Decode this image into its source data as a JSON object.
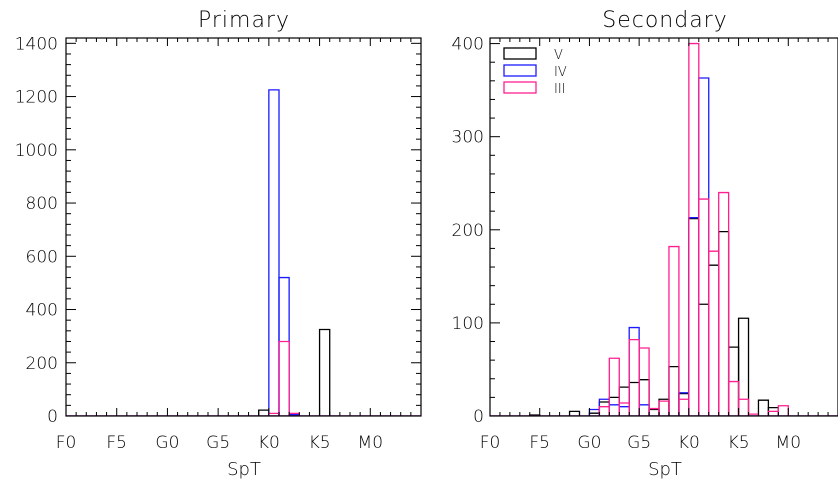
{
  "chart_data": [
    {
      "type": "histogram",
      "title": "Primary",
      "xlabel": "SpT",
      "ylabel": "",
      "xlim": [
        0,
        70
      ],
      "ylim": [
        0,
        1420
      ],
      "x_ticks": [
        {
          "value": 0,
          "label": "F0"
        },
        {
          "value": 10,
          "label": "F5"
        },
        {
          "value": 20,
          "label": "G0"
        },
        {
          "value": 30,
          "label": "G5"
        },
        {
          "value": 40,
          "label": "K0"
        },
        {
          "value": 50,
          "label": "K5"
        },
        {
          "value": 60,
          "label": "M0"
        }
      ],
      "y_ticks": [
        0,
        200,
        400,
        600,
        800,
        1000,
        1200,
        1400
      ],
      "bin_width": 2,
      "series": [
        {
          "key": "V",
          "color": "#000000",
          "bins": [
            {
              "x": 38,
              "value": 22
            },
            {
              "x": 44,
              "value": 4
            },
            {
              "x": 50,
              "value": 325
            }
          ]
        },
        {
          "key": "IV",
          "color": "#1a1aff",
          "bins": [
            {
              "x": 40,
              "value": 1225
            },
            {
              "x": 42,
              "value": 520
            },
            {
              "x": 44,
              "value": 5
            }
          ]
        },
        {
          "key": "III",
          "color": "#ff1f8f",
          "bins": [
            {
              "x": 40,
              "value": 10
            },
            {
              "x": 42,
              "value": 280
            },
            {
              "x": 44,
              "value": 10
            }
          ]
        }
      ]
    },
    {
      "type": "histogram",
      "title": "Secondary",
      "xlabel": "SpT",
      "ylabel": "",
      "xlim": [
        0,
        70
      ],
      "ylim": [
        0,
        406
      ],
      "x_ticks": [
        {
          "value": 0,
          "label": "F0"
        },
        {
          "value": 10,
          "label": "F5"
        },
        {
          "value": 20,
          "label": "G0"
        },
        {
          "value": 30,
          "label": "G5"
        },
        {
          "value": 40,
          "label": "K0"
        },
        {
          "value": 50,
          "label": "K5"
        },
        {
          "value": 60,
          "label": "M0"
        }
      ],
      "y_ticks": [
        0,
        100,
        200,
        300,
        400
      ],
      "bin_width": 2,
      "legend": {
        "placement": "top-left",
        "entries": [
          {
            "label": "V",
            "color": "#000000"
          },
          {
            "label": "IV",
            "color": "#1a1aff"
          },
          {
            "label": "III",
            "color": "#ff1f8f"
          }
        ]
      },
      "series": [
        {
          "key": "V",
          "color": "#000000",
          "bins": [
            {
              "x": 8,
              "value": 1
            },
            {
              "x": 16,
              "value": 5
            },
            {
              "x": 20,
              "value": 3
            },
            {
              "x": 22,
              "value": 15
            },
            {
              "x": 24,
              "value": 20
            },
            {
              "x": 26,
              "value": 31
            },
            {
              "x": 28,
              "value": 36
            },
            {
              "x": 30,
              "value": 39
            },
            {
              "x": 32,
              "value": 7
            },
            {
              "x": 34,
              "value": 18
            },
            {
              "x": 36,
              "value": 53
            },
            {
              "x": 38,
              "value": 24
            },
            {
              "x": 40,
              "value": 212
            },
            {
              "x": 42,
              "value": 120
            },
            {
              "x": 44,
              "value": 162
            },
            {
              "x": 46,
              "value": 198
            },
            {
              "x": 48,
              "value": 74
            },
            {
              "x": 50,
              "value": 105
            },
            {
              "x": 52,
              "value": 0
            },
            {
              "x": 54,
              "value": 17
            },
            {
              "x": 56,
              "value": 9
            }
          ]
        },
        {
          "key": "IV",
          "color": "#1a1aff",
          "bins": [
            {
              "x": 20,
              "value": 7
            },
            {
              "x": 22,
              "value": 18
            },
            {
              "x": 24,
              "value": 12
            },
            {
              "x": 26,
              "value": 10
            },
            {
              "x": 28,
              "value": 95
            },
            {
              "x": 30,
              "value": 12
            },
            {
              "x": 38,
              "value": 25
            },
            {
              "x": 40,
              "value": 213
            },
            {
              "x": 42,
              "value": 363
            },
            {
              "x": 44,
              "value": 0
            },
            {
              "x": 46,
              "value": 0
            }
          ]
        },
        {
          "key": "III",
          "color": "#ff1f8f",
          "bins": [
            {
              "x": 22,
              "value": 10
            },
            {
              "x": 24,
              "value": 62
            },
            {
              "x": 26,
              "value": 14
            },
            {
              "x": 28,
              "value": 82
            },
            {
              "x": 30,
              "value": 73
            },
            {
              "x": 32,
              "value": 8
            },
            {
              "x": 34,
              "value": 16
            },
            {
              "x": 36,
              "value": 182
            },
            {
              "x": 38,
              "value": 18
            },
            {
              "x": 40,
              "value": 400
            },
            {
              "x": 42,
              "value": 233
            },
            {
              "x": 44,
              "value": 177
            },
            {
              "x": 46,
              "value": 240
            },
            {
              "x": 48,
              "value": 37
            },
            {
              "x": 50,
              "value": 18
            },
            {
              "x": 52,
              "value": 2
            },
            {
              "x": 56,
              "value": 5
            },
            {
              "x": 58,
              "value": 11
            }
          ]
        }
      ]
    }
  ]
}
